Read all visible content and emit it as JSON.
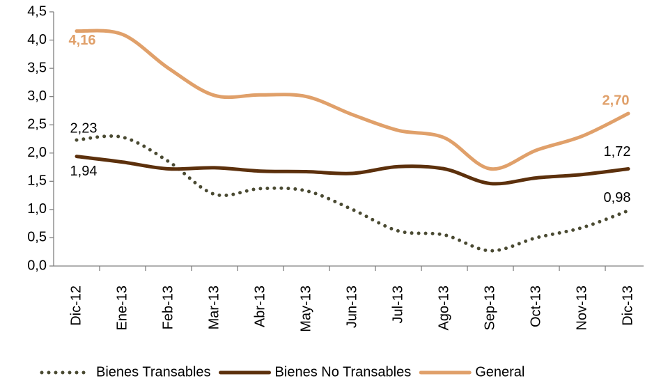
{
  "chart_data": {
    "type": "line",
    "categories": [
      "Dic-12",
      "Ene-13",
      "Feb-13",
      "Mar-13",
      "Abr-13",
      "May-13",
      "Jun-13",
      "Jul-13",
      "Ago-13",
      "Sep-13",
      "Oct-13",
      "Nov-13",
      "Dic-13"
    ],
    "series": [
      {
        "name": "Bienes Transables",
        "color": "#4a4a32",
        "style": "dotted",
        "values": [
          2.23,
          2.28,
          1.85,
          1.27,
          1.37,
          1.33,
          1.0,
          0.62,
          0.55,
          0.27,
          0.5,
          0.68,
          0.98
        ],
        "value_labels": [
          "2,23",
          null,
          null,
          null,
          null,
          null,
          null,
          null,
          null,
          null,
          null,
          null,
          "0,98"
        ]
      },
      {
        "name": "Bienes No Transables",
        "color": "#5c300c",
        "style": "solid",
        "values": [
          1.94,
          1.84,
          1.72,
          1.74,
          1.68,
          1.67,
          1.64,
          1.76,
          1.72,
          1.46,
          1.56,
          1.62,
          1.72
        ],
        "value_labels": [
          "1,94",
          null,
          null,
          null,
          null,
          null,
          null,
          null,
          null,
          null,
          null,
          null,
          "1,72"
        ]
      },
      {
        "name": "General",
        "color": "#e0a06a",
        "style": "solid",
        "values": [
          4.16,
          4.1,
          3.5,
          3.02,
          3.03,
          3.0,
          2.68,
          2.4,
          2.27,
          1.72,
          2.05,
          2.3,
          2.7
        ],
        "value_labels": [
          "4,16",
          null,
          null,
          null,
          null,
          null,
          null,
          null,
          null,
          null,
          null,
          null,
          "2,70"
        ]
      }
    ],
    "ylim": [
      0,
      4.5
    ],
    "yticks": [
      {
        "value": 0,
        "label": "0,0"
      },
      {
        "value": 0.5,
        "label": "0,5"
      },
      {
        "value": 1,
        "label": "1,0"
      },
      {
        "value": 1.5,
        "label": "1,5"
      },
      {
        "value": 2,
        "label": "2,0"
      },
      {
        "value": 2.5,
        "label": "2,5"
      },
      {
        "value": 3,
        "label": "3,0"
      },
      {
        "value": 3.5,
        "label": "3,5"
      },
      {
        "value": 4,
        "label": "4,0"
      },
      {
        "value": 4.5,
        "label": "4,5"
      }
    ],
    "legend": "bottom"
  }
}
